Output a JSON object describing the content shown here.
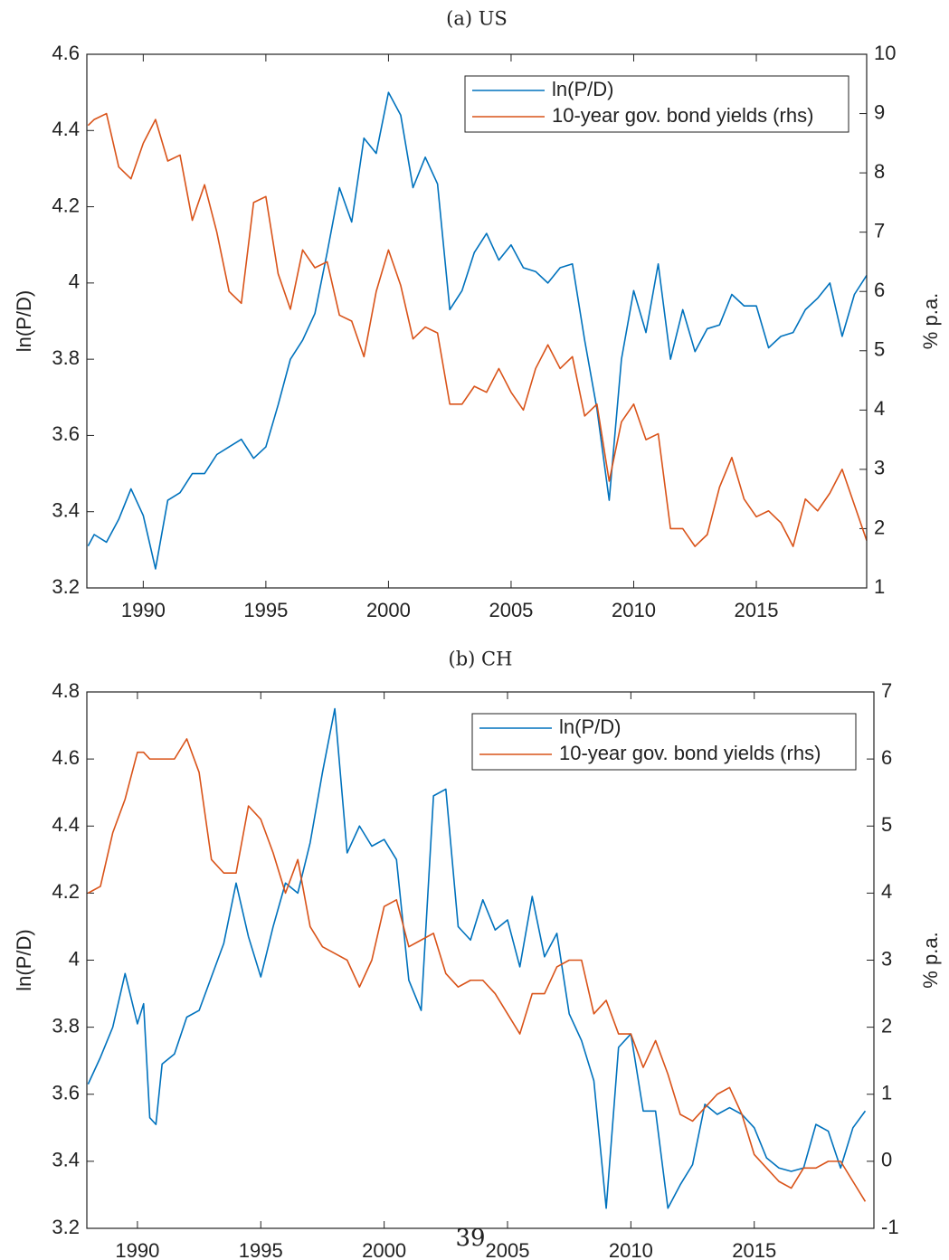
{
  "chart_data": [
    {
      "type": "line",
      "title": "(a) US",
      "ylabel": "ln(P/D)",
      "y2label": "% p.a.",
      "x": [
        1987.75,
        1988,
        1988.5,
        1989,
        1989.5,
        1990,
        1990.5,
        1991,
        1991.5,
        1992,
        1992.5,
        1993,
        1993.5,
        1994,
        1994.5,
        1995,
        1995.5,
        1996,
        1996.5,
        1997,
        1997.5,
        1998,
        1998.5,
        1999,
        1999.5,
        2000,
        2000.5,
        2001,
        2001.5,
        2002,
        2002.5,
        2003,
        2003.5,
        2004,
        2004.5,
        2005,
        2005.5,
        2006,
        2006.5,
        2007,
        2007.5,
        2008,
        2008.5,
        2009,
        2009.5,
        2010,
        2010.5,
        2011,
        2011.5,
        2012,
        2012.5,
        2013,
        2013.5,
        2014,
        2014.5,
        2015,
        2015.5,
        2016,
        2016.5,
        2017,
        2017.5,
        2018,
        2018.5,
        2019,
        2019.5
      ],
      "series": [
        {
          "name": "ln(P/D)",
          "color": "#0072BD",
          "values": [
            3.31,
            3.34,
            3.32,
            3.38,
            3.46,
            3.39,
            3.25,
            3.43,
            3.45,
            3.5,
            3.5,
            3.55,
            3.57,
            3.59,
            3.54,
            3.57,
            3.68,
            3.8,
            3.85,
            3.92,
            4.08,
            4.25,
            4.16,
            4.38,
            4.34,
            4.5,
            4.44,
            4.25,
            4.33,
            4.26,
            3.93,
            3.98,
            4.08,
            4.13,
            4.06,
            4.1,
            4.04,
            4.03,
            4.0,
            4.04,
            4.05,
            3.85,
            3.67,
            3.43,
            3.8,
            3.98,
            3.87,
            4.05,
            3.8,
            3.93,
            3.82,
            3.88,
            3.89,
            3.97,
            3.94,
            3.94,
            3.83,
            3.86,
            3.87,
            3.93,
            3.96,
            4.0,
            3.86,
            3.97,
            4.02
          ]
        },
        {
          "name": "10-year gov. bond yields (rhs)",
          "color": "#D95319",
          "axis": "y2",
          "values": [
            8.8,
            8.9,
            9.0,
            8.1,
            7.9,
            8.5,
            8.9,
            8.2,
            8.3,
            7.2,
            7.8,
            7.0,
            6.0,
            5.8,
            7.5,
            7.6,
            6.3,
            5.7,
            6.7,
            6.4,
            6.5,
            5.6,
            5.5,
            4.9,
            6.0,
            6.7,
            6.1,
            5.2,
            5.4,
            5.3,
            4.1,
            4.1,
            4.4,
            4.3,
            4.7,
            4.3,
            4.0,
            4.7,
            5.1,
            4.7,
            4.9,
            3.9,
            4.1,
            2.8,
            3.8,
            4.1,
            3.5,
            3.6,
            2.0,
            2.0,
            1.7,
            1.9,
            2.7,
            3.2,
            2.5,
            2.2,
            2.3,
            2.1,
            1.7,
            2.5,
            2.3,
            2.6,
            3.0,
            2.4,
            1.8
          ]
        }
      ],
      "xlim": [
        1987.7,
        2019.5
      ],
      "xticks": [
        1990,
        1995,
        2000,
        2005,
        2010,
        2015
      ],
      "ylim": [
        3.2,
        4.6
      ],
      "yticks": [
        3.2,
        3.4,
        3.6,
        3.8,
        4,
        4.2,
        4.4,
        4.6
      ],
      "y2lim": [
        1,
        10
      ],
      "y2ticks": [
        1,
        2,
        3,
        4,
        5,
        6,
        7,
        8,
        9,
        10
      ],
      "legend": "upper right"
    },
    {
      "type": "line",
      "title": "(b) CH",
      "ylabel": "ln(P/D)",
      "y2label": "% p.a.",
      "x": [
        1988,
        1988.5,
        1989,
        1989.5,
        1990,
        1990.25,
        1990.5,
        1990.75,
        1991,
        1991.5,
        1992,
        1992.5,
        1993,
        1993.5,
        1994,
        1994.5,
        1995,
        1995.5,
        1996,
        1996.5,
        1997,
        1997.5,
        1998,
        1998.5,
        1999,
        1999.5,
        2000,
        2000.5,
        2001,
        2001.5,
        2002,
        2002.5,
        2003,
        2003.5,
        2004,
        2004.5,
        2005,
        2005.5,
        2006,
        2006.5,
        2007,
        2007.5,
        2008,
        2008.5,
        2009,
        2009.5,
        2010,
        2010.5,
        2011,
        2011.5,
        2012,
        2012.5,
        2013,
        2013.5,
        2014,
        2014.5,
        2015,
        2015.5,
        2016,
        2016.5,
        2017,
        2017.5,
        2018,
        2018.5,
        2019,
        2019.5
      ],
      "series": [
        {
          "name": "ln(P/D)",
          "color": "#0072BD",
          "values": [
            3.63,
            3.71,
            3.8,
            3.96,
            3.81,
            3.87,
            3.53,
            3.51,
            3.69,
            3.72,
            3.83,
            3.85,
            3.95,
            4.05,
            4.23,
            4.07,
            3.95,
            4.1,
            4.23,
            4.2,
            4.35,
            4.56,
            4.75,
            4.32,
            4.4,
            4.34,
            4.36,
            4.3,
            3.94,
            3.85,
            4.49,
            4.51,
            4.1,
            4.06,
            4.18,
            4.09,
            4.12,
            3.98,
            4.19,
            4.01,
            4.08,
            3.84,
            3.76,
            3.64,
            3.26,
            3.74,
            3.78,
            3.55,
            3.55,
            3.26,
            3.33,
            3.39,
            3.57,
            3.54,
            3.56,
            3.54,
            3.5,
            3.41,
            3.38,
            3.37,
            3.38,
            3.51,
            3.49,
            3.38,
            3.5,
            3.55
          ]
        },
        {
          "name": "10-year gov. bond yields (rhs)",
          "color": "#D95319",
          "axis": "y2",
          "values": [
            4.0,
            4.1,
            4.9,
            5.4,
            6.1,
            6.1,
            6.0,
            6.0,
            6.0,
            6.0,
            6.3,
            5.8,
            4.5,
            4.3,
            4.3,
            5.3,
            5.1,
            4.6,
            4.0,
            4.5,
            3.5,
            3.2,
            3.1,
            3.0,
            2.6,
            3.0,
            3.8,
            3.9,
            3.2,
            3.3,
            3.4,
            2.8,
            2.6,
            2.7,
            2.7,
            2.5,
            2.2,
            1.9,
            2.5,
            2.5,
            2.9,
            3.0,
            3.0,
            2.2,
            2.4,
            1.9,
            1.9,
            1.4,
            1.8,
            1.3,
            0.7,
            0.6,
            0.8,
            1.0,
            1.1,
            0.7,
            0.1,
            -0.1,
            -0.3,
            -0.4,
            -0.1,
            -0.1,
            0.0,
            0.0,
            -0.3,
            -0.6
          ]
        }
      ],
      "xlim": [
        1987.95,
        2019.85
      ],
      "xticks": [
        1990,
        1995,
        2000,
        2005,
        2010,
        2015
      ],
      "ylim": [
        3.2,
        4.8
      ],
      "yticks": [
        3.2,
        3.4,
        3.6,
        3.8,
        4,
        4.2,
        4.4,
        4.6,
        4.8
      ],
      "y2lim": [
        -1,
        7
      ],
      "y2ticks": [
        -1,
        0,
        1,
        2,
        3,
        4,
        5,
        6,
        7
      ],
      "legend": "upper right"
    }
  ],
  "page_number": "39"
}
